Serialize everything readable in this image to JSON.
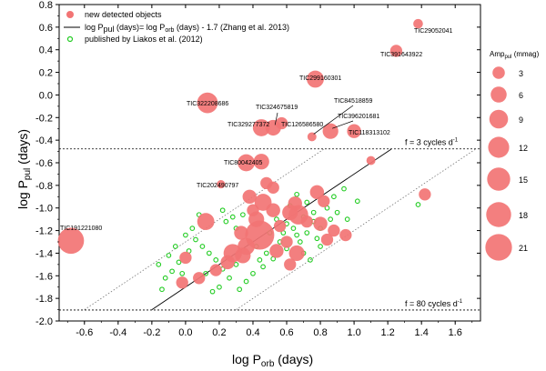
{
  "chart_data": {
    "type": "scatter",
    "xlabel": "log P",
    "xlabel_sub": "orb",
    "xlabel_unit": " (days)",
    "ylabel": "log P",
    "ylabel_sub": "pul",
    "ylabel_unit": " (days)",
    "xlim": [
      -0.75,
      1.75
    ],
    "ylim": [
      -2.0,
      0.8
    ],
    "xticks": [
      -0.6,
      -0.4,
      -0.2,
      0.0,
      0.2,
      0.4,
      0.6,
      0.8,
      1.0,
      1.2,
      1.4,
      1.6
    ],
    "xtick_labels": [
      "-0.6",
      "-0.4",
      "-0.2",
      "0.0",
      "0.2",
      "0.4",
      "0.6",
      "0.8",
      "1.0",
      "1.2",
      "1.4",
      "1.6"
    ],
    "yticks": [
      -2.0,
      -1.8,
      -1.6,
      -1.4,
      -1.2,
      -1.0,
      -0.8,
      -0.6,
      -0.4,
      -0.2,
      0.0,
      0.2,
      0.4,
      0.6,
      0.8
    ],
    "ytick_labels": [
      "-2.0",
      "-1.8",
      "-1.6",
      "-1.4",
      "-1.2",
      "-1.0",
      "-0.8",
      "-0.6",
      "-0.4",
      "-0.2",
      "0.0",
      "0.2",
      "0.4",
      "0.6",
      "0.8"
    ],
    "colors": {
      "new": "#f27474",
      "published": "#22cc22",
      "line": "#000000"
    },
    "legend": {
      "position": "top-left",
      "new": "new detected objects",
      "fit_a": "log P",
      "fit_a_sub": "pul",
      "fit_b": " (days)= log P",
      "fit_b_sub": "orb",
      "fit_c": " (days) - 1.7 (Zhang et al. 2013)",
      "published": "published by  Liakos et al. (2012)"
    },
    "hlines": [
      {
        "y": -0.477,
        "label": "f = 3 cycles d",
        "sup": "-1"
      },
      {
        "y": -1.903,
        "label": "f = 80 cycles d",
        "sup": "-1"
      }
    ],
    "fit_line": {
      "slope": 1.0,
      "intercept": -1.7,
      "x_range": [
        -0.2,
        1.22
      ]
    },
    "bounds": [
      {
        "offset": -1.3,
        "x_range": [
          -0.6,
          0.82
        ]
      },
      {
        "offset": -2.2,
        "x_range": [
          0.3,
          1.72
        ]
      }
    ],
    "size_legend": {
      "title": "Amp",
      "title_sub": "pul",
      "title_unit": " (mmag)",
      "values": [
        3,
        6,
        9,
        12,
        15,
        18,
        21
      ]
    },
    "labeled_objects": [
      {
        "name": "TIC29052041",
        "x": 1.38,
        "y": 0.63,
        "amp": 1
      },
      {
        "name": "TIC391643922",
        "x": 1.25,
        "y": 0.39,
        "amp": 2
      },
      {
        "name": "TIC299160301",
        "x": 0.77,
        "y": 0.14,
        "amp": 5
      },
      {
        "name": "TIC322208686",
        "x": 0.13,
        "y": -0.07,
        "amp": 8
      },
      {
        "name": "TIC84518859",
        "x": 0.75,
        "y": -0.37,
        "amp": 0.8
      },
      {
        "name": "TIC324675819",
        "x": 0.52,
        "y": -0.29,
        "amp": 4
      },
      {
        "name": "TIC126586580",
        "x": 0.57,
        "y": -0.25,
        "amp": 2
      },
      {
        "name": "TIC329277372",
        "x": 0.45,
        "y": -0.29,
        "amp": 5
      },
      {
        "name": "TIC396201681",
        "x": 0.86,
        "y": -0.32,
        "amp": 4
      },
      {
        "name": "TIC118313102",
        "x": 1.0,
        "y": -0.32,
        "amp": 3
      },
      {
        "name": "TIC80042405",
        "x": 0.36,
        "y": -0.6,
        "amp": 5
      },
      {
        "name": "TIC202490797",
        "x": 0.21,
        "y": -0.79,
        "amp": 0.6
      },
      {
        "name": "TIC191221080",
        "x": -0.68,
        "y": -1.29,
        "amp": 14
      }
    ],
    "new_objects": [
      {
        "x": 1.42,
        "y": -0.88,
        "amp": 2
      },
      {
        "x": 1.1,
        "y": -0.58,
        "amp": 0.8
      },
      {
        "x": 0.45,
        "y": -0.59,
        "amp": 4
      },
      {
        "x": 0.12,
        "y": -1.12,
        "amp": 5
      },
      {
        "x": 0.38,
        "y": -0.9,
        "amp": 3
      },
      {
        "x": 0.46,
        "y": -0.95,
        "amp": 5
      },
      {
        "x": 0.52,
        "y": -0.82,
        "amp": 2
      },
      {
        "x": 0.4,
        "y": -1.02,
        "amp": 2
      },
      {
        "x": 0.42,
        "y": -1.1,
        "amp": 4
      },
      {
        "x": 0.65,
        "y": -0.96,
        "amp": 3
      },
      {
        "x": 0.78,
        "y": -0.86,
        "amp": 3
      },
      {
        "x": 0.82,
        "y": -0.94,
        "amp": 2
      },
      {
        "x": 0.67,
        "y": -1.06,
        "amp": 7
      },
      {
        "x": 0.62,
        "y": -1.04,
        "amp": 4
      },
      {
        "x": 0.72,
        "y": -1.12,
        "amp": 2
      },
      {
        "x": 0.8,
        "y": -1.14,
        "amp": 3
      },
      {
        "x": 0.88,
        "y": -1.2,
        "amp": 2
      },
      {
        "x": 0.84,
        "y": -1.28,
        "amp": 2
      },
      {
        "x": 0.95,
        "y": -1.24,
        "amp": 2
      },
      {
        "x": 0.44,
        "y": -1.24,
        "amp": 18
      },
      {
        "x": 0.33,
        "y": -1.22,
        "amp": 3
      },
      {
        "x": 0.36,
        "y": -1.34,
        "amp": 5
      },
      {
        "x": 0.28,
        "y": -1.4,
        "amp": 6
      },
      {
        "x": 0.34,
        "y": -1.42,
        "amp": 4
      },
      {
        "x": 0.54,
        "y": -1.38,
        "amp": 3
      },
      {
        "x": 0.6,
        "y": -1.3,
        "amp": 2
      },
      {
        "x": 0.66,
        "y": -1.4,
        "amp": 4
      },
      {
        "x": 0.62,
        "y": -1.5,
        "amp": 2
      },
      {
        "x": 0.25,
        "y": -1.48,
        "amp": 3
      },
      {
        "x": 0.18,
        "y": -1.55,
        "amp": 2
      },
      {
        "x": 0.08,
        "y": -1.62,
        "amp": 2
      },
      {
        "x": 0.0,
        "y": -1.44,
        "amp": 2
      },
      {
        "x": -0.02,
        "y": -1.66,
        "amp": 2
      },
      {
        "x": 0.52,
        "y": -1.02,
        "amp": 3
      },
      {
        "x": 0.48,
        "y": -0.78,
        "amp": 2
      },
      {
        "x": 0.56,
        "y": -1.16,
        "amp": 2
      }
    ],
    "published": [
      {
        "x": 0.94,
        "y": -0.83
      },
      {
        "x": 1.02,
        "y": -0.94
      },
      {
        "x": 1.38,
        "y": -0.97
      },
      {
        "x": 0.88,
        "y": -0.9
      },
      {
        "x": 0.84,
        "y": -1.0
      },
      {
        "x": 0.72,
        "y": -0.95
      },
      {
        "x": 0.7,
        "y": -1.08
      },
      {
        "x": 0.76,
        "y": -1.12
      },
      {
        "x": 0.8,
        "y": -1.18
      },
      {
        "x": 0.78,
        "y": -1.27
      },
      {
        "x": 0.72,
        "y": -1.22
      },
      {
        "x": 0.66,
        "y": -1.24
      },
      {
        "x": 0.6,
        "y": -1.14
      },
      {
        "x": 0.58,
        "y": -1.22
      },
      {
        "x": 0.56,
        "y": -1.3
      },
      {
        "x": 0.6,
        "y": -1.36
      },
      {
        "x": 0.52,
        "y": -1.45
      },
      {
        "x": 0.48,
        "y": -1.4
      },
      {
        "x": 0.46,
        "y": -1.52
      },
      {
        "x": 0.4,
        "y": -1.58
      },
      {
        "x": 0.36,
        "y": -1.65
      },
      {
        "x": 0.32,
        "y": -1.72
      },
      {
        "x": 0.26,
        "y": -1.62
      },
      {
        "x": 0.22,
        "y": -1.54
      },
      {
        "x": 0.18,
        "y": -1.46
      },
      {
        "x": 0.14,
        "y": -1.4
      },
      {
        "x": 0.1,
        "y": -1.34
      },
      {
        "x": 0.06,
        "y": -1.28
      },
      {
        "x": 0.02,
        "y": -1.38
      },
      {
        "x": -0.04,
        "y": -1.48
      },
      {
        "x": -0.08,
        "y": -1.56
      },
      {
        "x": -0.12,
        "y": -1.62
      },
      {
        "x": -0.16,
        "y": -1.5
      },
      {
        "x": -0.1,
        "y": -1.42
      },
      {
        "x": -0.06,
        "y": -1.34
      },
      {
        "x": 0.0,
        "y": -1.24
      },
      {
        "x": 0.04,
        "y": -1.18
      },
      {
        "x": 0.08,
        "y": -1.06
      },
      {
        "x": 0.22,
        "y": -1.02
      },
      {
        "x": 0.24,
        "y": -1.12
      },
      {
        "x": 0.28,
        "y": -1.08
      },
      {
        "x": 0.3,
        "y": -1.18
      },
      {
        "x": 0.34,
        "y": -1.06
      },
      {
        "x": 0.38,
        "y": -1.3
      },
      {
        "x": 0.42,
        "y": -1.34
      },
      {
        "x": 0.5,
        "y": -1.22
      },
      {
        "x": 0.54,
        "y": -1.1
      },
      {
        "x": 0.62,
        "y": -0.98
      },
      {
        "x": 0.66,
        "y": -0.88
      },
      {
        "x": 0.7,
        "y": -1.4
      },
      {
        "x": 0.74,
        "y": -1.46
      },
      {
        "x": 0.8,
        "y": -1.34
      },
      {
        "x": 0.86,
        "y": -1.1
      },
      {
        "x": 0.9,
        "y": -1.04
      },
      {
        "x": 0.2,
        "y": -1.7
      },
      {
        "x": 0.16,
        "y": -1.74
      },
      {
        "x": -0.14,
        "y": -1.72
      },
      {
        "x": -0.02,
        "y": -1.58
      },
      {
        "x": 0.12,
        "y": -1.58
      },
      {
        "x": 0.3,
        "y": -1.5
      },
      {
        "x": 0.44,
        "y": -1.46
      },
      {
        "x": 0.64,
        "y": -1.18
      },
      {
        "x": 0.68,
        "y": -1.3
      },
      {
        "x": 0.76,
        "y": -1.04
      },
      {
        "x": 0.96,
        "y": -1.1
      }
    ]
  }
}
